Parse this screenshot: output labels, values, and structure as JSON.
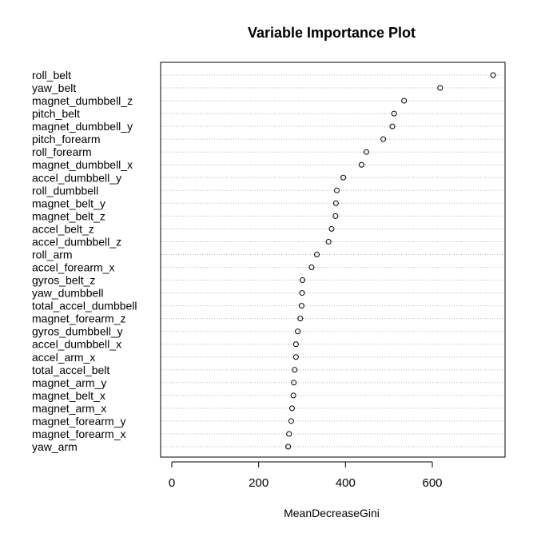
{
  "chart_data": {
    "type": "scatter",
    "title": "Variable Importance Plot",
    "xlabel": "MeanDecreaseGini",
    "ylabel": "",
    "xlim": [
      0,
      760
    ],
    "xticks": [
      0,
      200,
      400,
      600
    ],
    "grid": "dotted horizontal lines",
    "variables": [
      "roll_belt",
      "yaw_belt",
      "magnet_dumbbell_z",
      "pitch_belt",
      "magnet_dumbbell_y",
      "pitch_forearm",
      "roll_forearm",
      "magnet_dumbbell_x",
      "accel_dumbbell_y",
      "roll_dumbbell",
      "magnet_belt_y",
      "magnet_belt_z",
      "accel_belt_z",
      "accel_dumbbell_z",
      "roll_arm",
      "accel_forearm_x",
      "gyros_belt_z",
      "yaw_dumbbell",
      "total_accel_dumbbell",
      "magnet_forearm_z",
      "gyros_dumbbell_y",
      "accel_dumbbell_x",
      "accel_arm_x",
      "total_accel_belt",
      "magnet_arm_y",
      "magnet_belt_x",
      "magnet_arm_x",
      "magnet_forearm_y",
      "magnet_forearm_x",
      "yaw_arm"
    ],
    "values": [
      740,
      618,
      535,
      512,
      508,
      487,
      448,
      437,
      395,
      380,
      378,
      377,
      368,
      361,
      334,
      322,
      301,
      300,
      299,
      296,
      290,
      286,
      286,
      283,
      281,
      280,
      277,
      275,
      270,
      268
    ]
  }
}
